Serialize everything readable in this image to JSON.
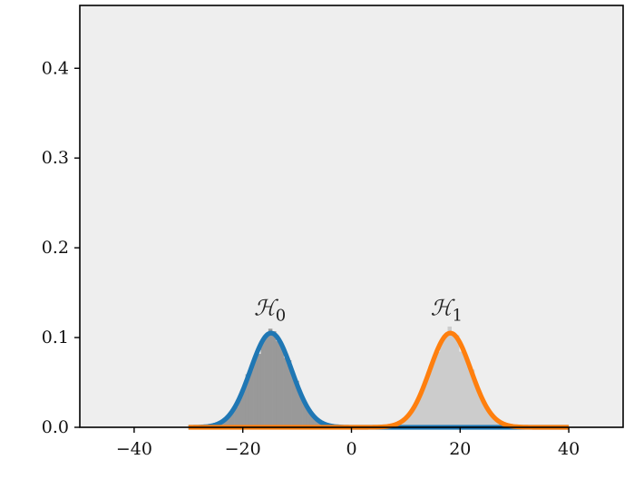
{
  "chart_data": {
    "type": "area",
    "title": "",
    "xlabel": "",
    "ylabel": "",
    "xlim": [
      -50,
      50
    ],
    "ylim": [
      0,
      0.47
    ],
    "xticks": [
      -40,
      -20,
      0,
      20,
      40
    ],
    "xtick_labels": [
      "−40",
      "−20",
      "0",
      "20",
      "40"
    ],
    "yticks": [
      0.0,
      0.1,
      0.2,
      0.3,
      0.4
    ],
    "ytick_labels": [
      "0.0",
      "0.1",
      "0.2",
      "0.3",
      "0.4"
    ],
    "grid": false,
    "background_color": "#eeeeee",
    "series": [
      {
        "kind": "gaussian",
        "mean": -14.8,
        "std": 3.8,
        "x_range": [
          -30,
          40
        ],
        "color": "#1f77b4",
        "histogram_color": "#999999"
      },
      {
        "kind": "gaussian",
        "mean": 18.2,
        "std": 3.8,
        "x_range": [
          -30,
          40
        ],
        "color": "#ff7f0e",
        "histogram_color": "#cccccc"
      }
    ],
    "annotations": [
      {
        "text_main": "ℋ",
        "text_sub": "0",
        "x": -15,
        "y": 0.125
      },
      {
        "text_main": "ℋ",
        "text_sub": "1",
        "x": 17.5,
        "y": 0.125
      }
    ]
  }
}
